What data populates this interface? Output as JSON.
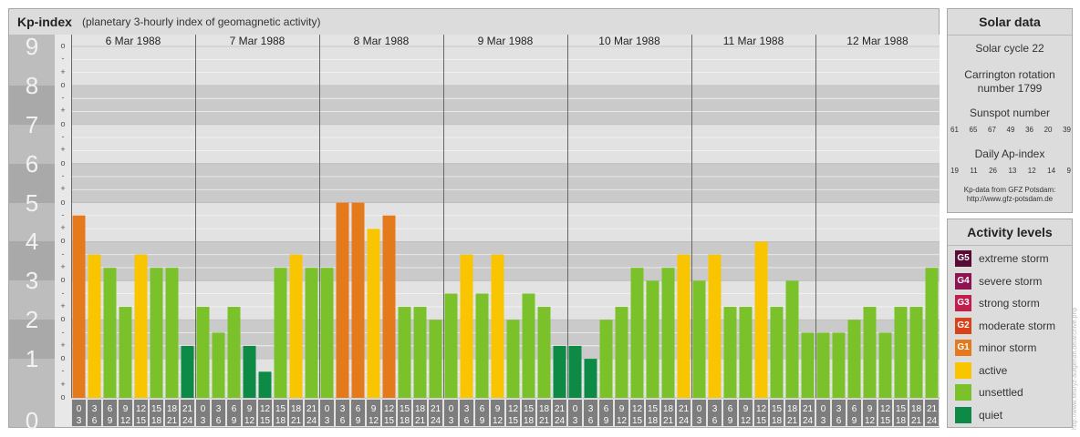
{
  "header": {
    "title": "Kp-index",
    "subtitle": "(planetary 3-hourly index of geomagnetic activity)"
  },
  "axis": {
    "major_labels": [
      "0",
      "1",
      "2",
      "3",
      "4",
      "5",
      "6",
      "7",
      "8",
      "9"
    ],
    "minor_marks": [
      "o",
      "+",
      "-"
    ]
  },
  "chart_data": {
    "type": "bar",
    "title": "Kp-index",
    "subtitle": "(planetary 3-hourly index of geomagnetic activity)",
    "ylim": [
      0,
      9
    ],
    "days": [
      "6 Mar 1988",
      "7 Mar 1988",
      "8 Mar 1988",
      "9 Mar 1988",
      "10 Mar 1988",
      "11 Mar 1988",
      "12 Mar 1988"
    ],
    "interval_labels": [
      [
        "0",
        "3"
      ],
      [
        "3",
        "6"
      ],
      [
        "6",
        "9"
      ],
      [
        "9",
        "12"
      ],
      [
        "12",
        "15"
      ],
      [
        "15",
        "18"
      ],
      [
        "18",
        "21"
      ],
      [
        "21",
        "24"
      ]
    ],
    "values": [
      [
        4.67,
        3.67,
        3.33,
        2.33,
        3.67,
        3.33,
        3.33,
        1.33
      ],
      [
        2.33,
        1.67,
        2.33,
        1.33,
        0.67,
        3.33,
        3.67,
        3.33
      ],
      [
        3.33,
        5.0,
        5.0,
        4.33,
        4.67,
        2.33,
        2.33,
        2.0
      ],
      [
        2.67,
        3.67,
        2.67,
        3.67,
        2.0,
        2.67,
        2.33,
        1.33
      ],
      [
        1.33,
        1.0,
        2.0,
        2.33,
        3.33,
        3.0,
        3.33,
        3.67
      ],
      [
        3.0,
        3.67,
        2.33,
        2.33,
        4.0,
        2.33,
        3.0,
        1.67
      ],
      [
        1.67,
        1.67,
        2.0,
        2.33,
        1.67,
        2.33,
        2.33,
        3.33
      ]
    ]
  },
  "colors": {
    "quiet": "#0c8a46",
    "unsettled": "#7ac12a",
    "active": "#f9c400",
    "g1": "#e57a1c",
    "g2": "#d94119",
    "g3": "#c01f4e",
    "g4": "#8e1353",
    "g5": "#5a0b35"
  },
  "solar": {
    "heading": "Solar data",
    "cycle": "Solar cycle 22",
    "carrington_line1": "Carrington rotation",
    "carrington_line2": "number 1799",
    "sunspot_label": "Sunspot number",
    "sunspot_values": [
      "61",
      "65",
      "67",
      "49",
      "36",
      "20",
      "39"
    ],
    "ap_label": "Daily Ap-index",
    "ap_values": [
      "19",
      "11",
      "26",
      "13",
      "12",
      "14",
      "9"
    ],
    "source_line1": "Kp-data from GFZ Potsdam:",
    "source_line2": "http://www.gfz-potsdam.de"
  },
  "activity": {
    "heading": "Activity levels",
    "items": [
      {
        "badge": "G5",
        "label": "extreme storm",
        "color": "#5a0b35"
      },
      {
        "badge": "G4",
        "label": "severe storm",
        "color": "#8e1353"
      },
      {
        "badge": "G3",
        "label": "strong storm",
        "color": "#c01f4e"
      },
      {
        "badge": "G2",
        "label": "moderate storm",
        "color": "#d94119"
      },
      {
        "badge": "G1",
        "label": "minor storm",
        "color": "#e57a1c"
      },
      {
        "badge": "",
        "label": "active",
        "color": "#f9c400"
      },
      {
        "badge": "",
        "label": "unsettled",
        "color": "#7ac12a"
      },
      {
        "badge": "",
        "label": "quiet",
        "color": "#0c8a46"
      }
    ]
  },
  "credit": "http://www.fleuryz-aufgehaft.de/archive.php"
}
